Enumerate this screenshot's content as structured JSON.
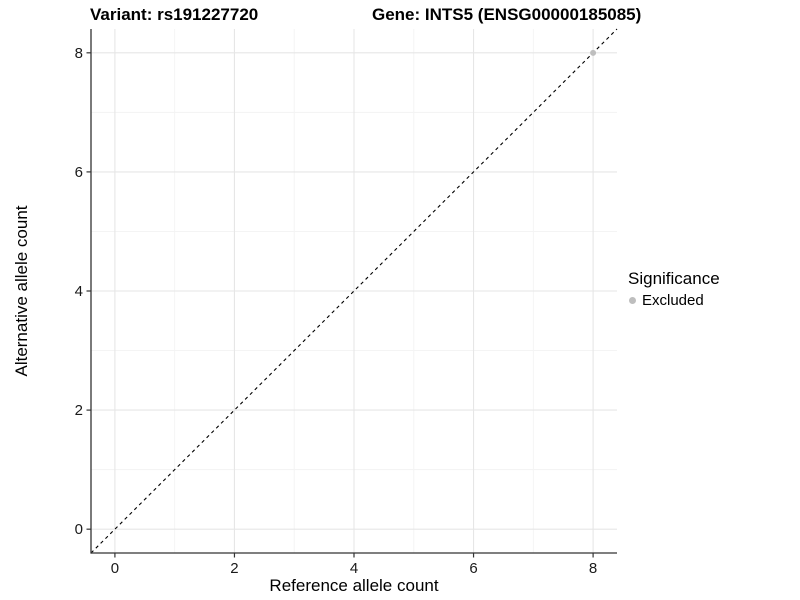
{
  "title": {
    "variant": "Variant: rs191227720",
    "gene": "Gene: INTS5 (ENSG00000185085)"
  },
  "legend": {
    "title": "Significance",
    "items": [
      {
        "label": "Excluded",
        "color": "#bebebe"
      }
    ]
  },
  "chart_data": {
    "type": "scatter",
    "title": "Variant: rs191227720 / Gene: INTS5 (ENSG00000185085)",
    "xlabel": "Reference allele count",
    "ylabel": "Alternative allele count",
    "xlim": [
      -0.4,
      8.4
    ],
    "ylim": [
      -0.4,
      8.4
    ],
    "x_ticks": [
      0,
      2,
      4,
      6,
      8
    ],
    "y_ticks": [
      0,
      2,
      4,
      6,
      8
    ],
    "x_minor": [
      1,
      3,
      5,
      7
    ],
    "y_minor": [
      1,
      3,
      5,
      7
    ],
    "grid": true,
    "legend_position": "right",
    "series": [
      {
        "name": "Excluded",
        "color": "#bebebe",
        "point_radius": 3,
        "points": [
          [
            8,
            8
          ]
        ]
      }
    ],
    "reference_line": {
      "slope": 1,
      "intercept": 0,
      "linetype": "dashed",
      "color": "#000000"
    }
  },
  "colors": {
    "background": "#ffffff",
    "grid_major": "#e6e6e6",
    "grid_minor": "#f3f3f3",
    "axis_line": "#333333",
    "tick_label": "#1a1a1a"
  }
}
